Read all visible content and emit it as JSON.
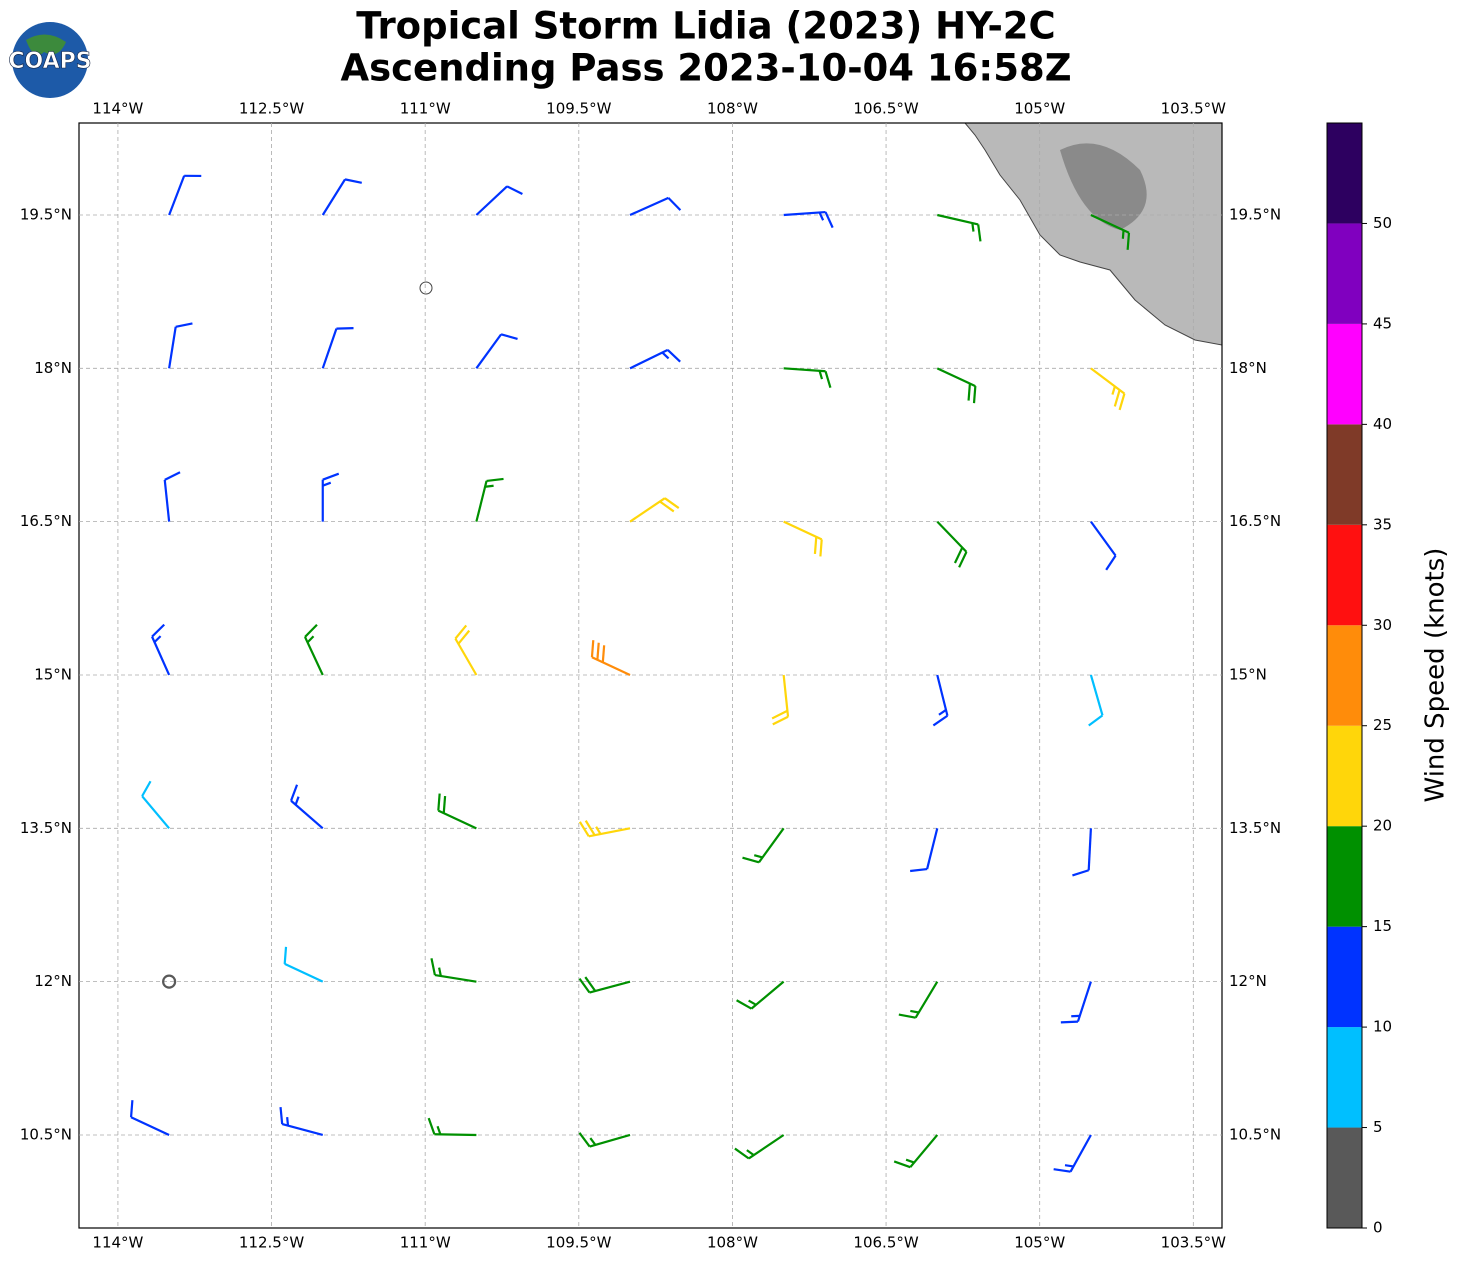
{
  "chart_data": {
    "type": "barbs",
    "title": "Tropical Storm Lidia (2023) HY-2C",
    "subtitle": "Ascending Pass 2023-10-04 16:58Z",
    "logo_text": "COAPS",
    "xlim": [
      -114.38,
      -103.22
    ],
    "ylim": [
      9.59,
      20.4
    ],
    "xticks": [
      {
        "value": -114,
        "label": "114°W"
      },
      {
        "value": -112.5,
        "label": "112.5°W"
      },
      {
        "value": -111,
        "label": "111°W"
      },
      {
        "value": -109.5,
        "label": "109.5°W"
      },
      {
        "value": -108,
        "label": "108°W"
      },
      {
        "value": -106.5,
        "label": "106.5°W"
      },
      {
        "value": -105,
        "label": "105°W"
      },
      {
        "value": -103.5,
        "label": "103.5°W"
      }
    ],
    "yticks": [
      {
        "value": 10.5,
        "label": "10.5°N"
      },
      {
        "value": 12,
        "label": "12°N"
      },
      {
        "value": 13.5,
        "label": "13.5°N"
      },
      {
        "value": 15,
        "label": "15°N"
      },
      {
        "value": 16.5,
        "label": "16.5°N"
      },
      {
        "value": 18,
        "label": "18°N"
      },
      {
        "value": 19.5,
        "label": "19.5°N"
      }
    ],
    "grid": true,
    "lons": [
      -113.5,
      -112,
      -110.5,
      -109,
      -107.5,
      -106,
      -104.5
    ],
    "lats": [
      19.5,
      18,
      16.5,
      15,
      13.5,
      12,
      10.5
    ],
    "speed": [
      [
        12,
        12,
        12,
        11,
        13,
        17,
        16
      ],
      [
        12,
        12,
        12,
        13,
        17,
        19,
        24
      ],
      [
        12,
        13,
        17,
        22,
        22,
        18,
        12
      ],
      [
        13,
        17,
        22,
        28,
        20,
        13,
        9
      ],
      [
        8,
        14,
        19,
        23,
        17,
        12,
        11
      ],
      [
        3,
        8,
        16,
        19,
        17,
        16,
        13
      ],
      [
        12,
        14,
        16,
        17,
        17,
        17,
        13
      ]
    ],
    "direction": [
      [
        21,
        32,
        47,
        66,
        86,
        103,
        115
      ],
      [
        9,
        19,
        36,
        64,
        94,
        115,
        127
      ],
      [
        354,
        0,
        14,
        56,
        115,
        136,
        144
      ],
      [
        336,
        335,
        330,
        295,
        174,
        166,
        164
      ],
      [
        320,
        311,
        295,
        259,
        216,
        194,
        183
      ],
      [
        306,
        295,
        279,
        255,
        230,
        211,
        198
      ],
      [
        295,
        285,
        271,
        254,
        236,
        220,
        209
      ]
    ],
    "colorbar": {
      "label": "Wind Speed (knots)",
      "lim": [
        0,
        55
      ],
      "bounds": [
        0,
        5,
        10,
        15,
        20,
        25,
        30,
        35,
        40,
        45,
        50,
        55
      ],
      "colors": [
        "#595959",
        "#00bfff",
        "#0033ff",
        "#009000",
        "#ffd60a",
        "#ff8c0a",
        "#ff1010",
        "#7f3a28",
        "#ff00ff",
        "#8000bf",
        "#2d0060"
      ],
      "ticks": [
        0,
        5,
        10,
        15,
        20,
        25,
        30,
        35,
        40,
        45,
        50
      ]
    }
  }
}
